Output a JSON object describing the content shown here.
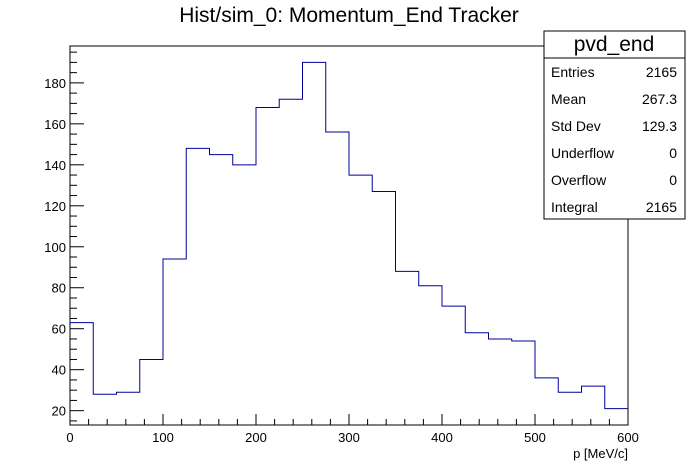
{
  "chart_data": {
    "type": "histogram",
    "title": "Hist/sim_0: Momentum_End Tracker",
    "xlabel": "p [MeV/c]",
    "ylabel": "",
    "xlim": [
      0,
      600
    ],
    "ylim": [
      13,
      198
    ],
    "bin_width": 25,
    "bin_edges": [
      0,
      25,
      50,
      75,
      100,
      125,
      150,
      175,
      200,
      225,
      250,
      275,
      300,
      325,
      350,
      375,
      400,
      425,
      450,
      475,
      500,
      525,
      550,
      575,
      600
    ],
    "values": [
      63,
      28,
      29,
      45,
      94,
      148,
      145,
      140,
      168,
      172,
      190,
      156,
      135,
      127,
      88,
      81,
      71,
      58,
      55,
      54,
      36,
      29,
      32,
      21
    ],
    "x_ticks": [
      "0",
      "100",
      "200",
      "300",
      "400",
      "500",
      "600"
    ],
    "y_ticks": [
      "20",
      "40",
      "60",
      "80",
      "100",
      "120",
      "140",
      "160",
      "180"
    ],
    "line_color": "#000099",
    "grid": false
  },
  "stats_box": {
    "title": "pvd_end",
    "rows": [
      {
        "label": "Entries",
        "value": "2165"
      },
      {
        "label": "Mean",
        "value": "267.3"
      },
      {
        "label": "Std Dev",
        "value": "129.3"
      },
      {
        "label": "Underflow",
        "value": "0"
      },
      {
        "label": "Overflow",
        "value": "0"
      },
      {
        "label": "Integral",
        "value": "2165"
      }
    ]
  }
}
